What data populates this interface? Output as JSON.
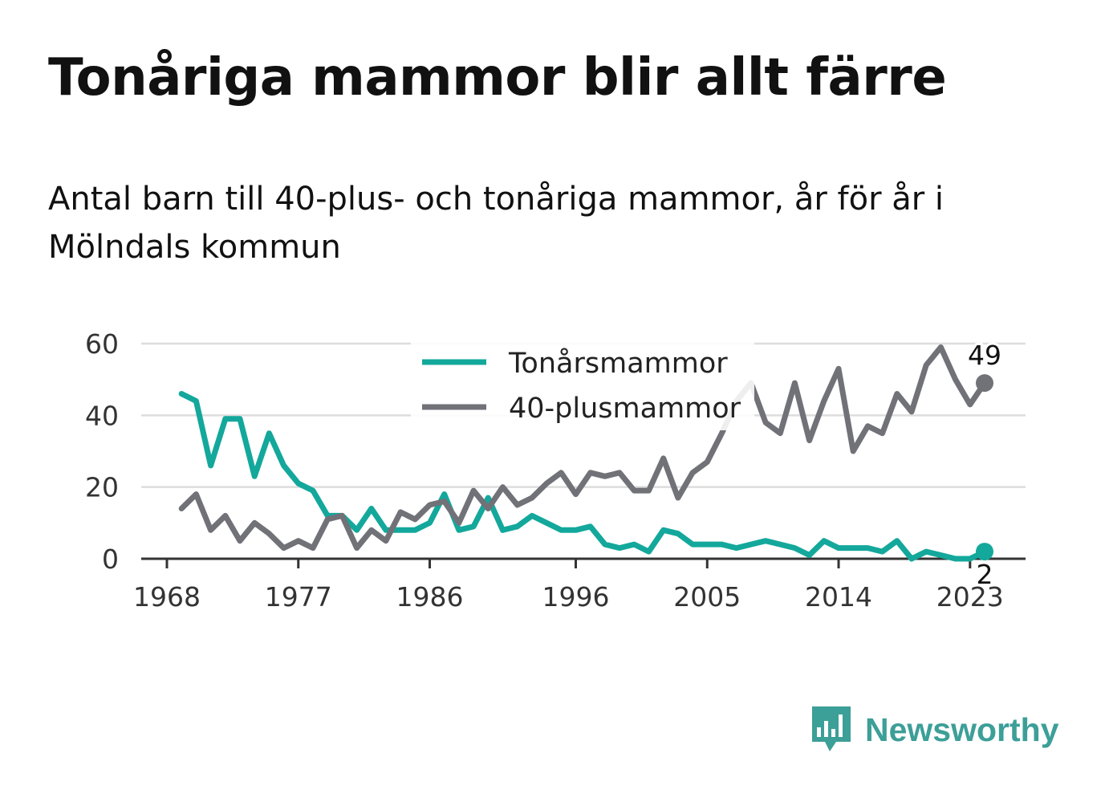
{
  "title": "Tonåriga mammor blir allt färre",
  "subtitle": "Antal barn till 40-plus- och tonåriga mammor, år för år i Mölndals kommun",
  "brand": {
    "name": "Newsworthy",
    "color": "#3c9f98",
    "icon": "bar-chart-speech-bubble-icon"
  },
  "chart_data": {
    "type": "line",
    "x": [
      1969,
      1970,
      1971,
      1972,
      1973,
      1974,
      1975,
      1976,
      1977,
      1978,
      1979,
      1980,
      1981,
      1982,
      1983,
      1984,
      1985,
      1986,
      1987,
      1988,
      1989,
      1990,
      1991,
      1992,
      1993,
      1994,
      1995,
      1996,
      1997,
      1998,
      1999,
      2000,
      2001,
      2002,
      2003,
      2004,
      2005,
      2006,
      2007,
      2008,
      2009,
      2010,
      2011,
      2012,
      2013,
      2014,
      2015,
      2016,
      2017,
      2018,
      2019,
      2020,
      2021,
      2022,
      2023,
      2024
    ],
    "x_ticks": [
      1968,
      1977,
      1986,
      1996,
      2005,
      2014,
      2023
    ],
    "y_ticks": [
      0,
      20,
      40,
      60
    ],
    "ylim": [
      0,
      60
    ],
    "grid": true,
    "legend_position": "top-center",
    "series": [
      {
        "name": "Tonårsmammor",
        "color": "#13a89b",
        "values": [
          46,
          44,
          26,
          39,
          39,
          23,
          35,
          26,
          21,
          19,
          12,
          12,
          8,
          14,
          8,
          8,
          8,
          10,
          18,
          8,
          9,
          17,
          8,
          9,
          12,
          10,
          8,
          8,
          9,
          4,
          3,
          4,
          2,
          8,
          7,
          4,
          4,
          4,
          3,
          4,
          5,
          4,
          3,
          1,
          5,
          3,
          3,
          3,
          2,
          5,
          0,
          2,
          1,
          0,
          0,
          2
        ],
        "end_label": "2"
      },
      {
        "name": "40-plusmammor",
        "color": "#717178",
        "values": [
          14,
          18,
          8,
          12,
          5,
          10,
          7,
          3,
          5,
          3,
          11,
          12,
          3,
          8,
          5,
          13,
          11,
          15,
          16,
          10,
          19,
          14,
          20,
          15,
          17,
          21,
          24,
          18,
          24,
          23,
          24,
          19,
          19,
          28,
          17,
          24,
          27,
          35,
          44,
          49,
          38,
          35,
          49,
          33,
          44,
          53,
          30,
          37,
          35,
          46,
          41,
          54,
          59,
          50,
          43,
          49
        ],
        "end_label": "49"
      }
    ]
  }
}
